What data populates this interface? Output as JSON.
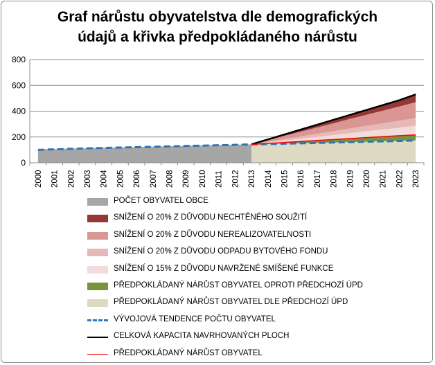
{
  "title_lines": [
    "Graf nárůstu obyvatelstva dle demografických",
    "údajů a křivka předpokládaného nárůstu"
  ],
  "chart_data": {
    "type": "area",
    "title": "Graf nárůstu obyvatelstva dle demografických údajů a křivka předpokládaného nárůstu",
    "xlabel": "",
    "ylabel": "",
    "x": [
      "2000",
      "2001",
      "2002",
      "2003",
      "2004",
      "2005",
      "2006",
      "2007",
      "2008",
      "2009",
      "2010",
      "2011",
      "2012",
      "2013",
      "2014",
      "2015",
      "2016",
      "2017",
      "2018",
      "2019",
      "2020",
      "2021",
      "2022",
      "2023"
    ],
    "ylim": [
      0,
      800
    ],
    "yticks": [
      "0",
      "200",
      "400",
      "600",
      "800"
    ],
    "grid": true,
    "legend_position": "bottom",
    "series": [
      {
        "name": "POČET OBYVATEL OBCE",
        "kind": "area",
        "color": "#a6a6a6",
        "values": [
          105,
          107,
          110,
          113,
          116,
          119,
          122,
          125,
          128,
          131,
          134,
          137,
          140,
          143,
          null,
          null,
          null,
          null,
          null,
          null,
          null,
          null,
          null,
          null
        ]
      },
      {
        "name": "SNÍŽENÍ O 20% Z DŮVODU NECHTĚNÉHO SOUŽITÍ",
        "kind": "area",
        "color": "#953735",
        "values": [
          null,
          null,
          null,
          null,
          null,
          null,
          null,
          null,
          null,
          null,
          null,
          null,
          null,
          0,
          7,
          14,
          20,
          26,
          31,
          37,
          43,
          49,
          54,
          60
        ]
      },
      {
        "name": "SNÍŽENÍ O 20% Z DŮVODU NEREALIZOVATELNOSTI",
        "kind": "area",
        "color": "#d99694",
        "values": [
          null,
          null,
          null,
          null,
          null,
          null,
          null,
          null,
          null,
          null,
          null,
          null,
          null,
          0,
          12,
          25,
          37,
          49,
          61,
          74,
          86,
          98,
          110,
          123
        ]
      },
      {
        "name": "SNÍŽENÍ O 20% Z DŮVODU ODPADU BYTOVÉHO FONDU",
        "kind": "area",
        "color": "#e6b9b8",
        "values": [
          null,
          null,
          null,
          null,
          null,
          null,
          null,
          null,
          null,
          null,
          null,
          null,
          null,
          0,
          6,
          12,
          18,
          24,
          30,
          36,
          42,
          48,
          54,
          60
        ]
      },
      {
        "name": "SNÍŽENÍ O 15% Z DŮVODU NAVRŽENÉ SMÍŠENÉ FUNKCE",
        "kind": "area",
        "color": "#f2dcdb",
        "values": [
          null,
          null,
          null,
          null,
          null,
          null,
          null,
          null,
          null,
          null,
          null,
          null,
          null,
          0,
          7,
          14,
          21,
          29,
          36,
          43,
          50,
          57,
          64,
          71
        ]
      },
      {
        "name": "PŘEDPOKLÁDANÝ NÁRŮST OBYVATEL OPROTI PŘEDCHOZÍ ÚPD",
        "kind": "area",
        "color": "#77933c",
        "values": [
          null,
          null,
          null,
          null,
          null,
          null,
          null,
          null,
          null,
          null,
          null,
          null,
          null,
          0,
          4,
          9,
          13,
          17,
          21,
          26,
          30,
          34,
          38,
          43
        ]
      },
      {
        "name": "PŘEDPOKLÁDANÝ NÁRŮST OBYVATEL DLE PŘEDCHOZÍ ÚPD",
        "kind": "area",
        "color": "#ddd9c3",
        "values": [
          null,
          null,
          null,
          null,
          null,
          null,
          null,
          null,
          null,
          null,
          null,
          null,
          null,
          143,
          146,
          149,
          152,
          155,
          158,
          161,
          164,
          167,
          170,
          173
        ]
      },
      {
        "name": "VÝVOJOVÁ TENDENCE POČTU OBYVATEL",
        "kind": "line",
        "style": "dashed",
        "color": "#2e75b6",
        "values": [
          100,
          104,
          108,
          112,
          115,
          118,
          121,
          124,
          127,
          130,
          133,
          136,
          139,
          142,
          145,
          148,
          151,
          154,
          157,
          160,
          163,
          166,
          169,
          173
        ]
      },
      {
        "name": "CELKOVÁ KAPACITA NAVRHOVANÝCH PLOCH",
        "kind": "line",
        "style": "solid",
        "color": "#000000",
        "values": [
          null,
          null,
          null,
          null,
          null,
          null,
          null,
          null,
          null,
          null,
          null,
          null,
          null,
          143,
          181,
          219,
          257,
          295,
          333,
          371,
          409,
          447,
          485,
          530
        ]
      },
      {
        "name": "PŘEDPOKLÁDANÝ NÁRŮST OBYVATEL",
        "kind": "line",
        "style": "solid",
        "color": "#ff0000",
        "values": [
          null,
          null,
          null,
          null,
          null,
          null,
          null,
          null,
          null,
          null,
          null,
          null,
          null,
          143,
          150,
          158,
          165,
          173,
          180,
          188,
          195,
          203,
          210,
          216
        ]
      }
    ],
    "legend_order": [
      "POČET OBYVATEL OBCE",
      "SNÍŽENÍ O 20% Z DŮVODU NECHTĚNÉHO SOUŽITÍ",
      "SNÍŽENÍ O 20% Z DŮVODU NEREALIZOVATELNOSTI",
      "SNÍŽENÍ O 20% Z DŮVODU ODPADU BYTOVÉHO FONDU",
      "SNÍŽENÍ O 15% Z DŮVODU NAVRŽENÉ SMÍŠENÉ FUNKCE",
      "PŘEDPOKLÁDANÝ NÁRŮST OBYVATEL OPROTI PŘEDCHOZÍ ÚPD",
      "PŘEDPOKLÁDANÝ NÁRŮST OBYVATEL DLE PŘEDCHOZÍ ÚPD",
      "VÝVOJOVÁ TENDENCE POČTU OBYVATEL",
      "CELKOVÁ KAPACITA NAVRHOVANÝCH PLOCH",
      "PŘEDPOKLÁDANÝ NÁRŮST OBYVATEL"
    ]
  }
}
